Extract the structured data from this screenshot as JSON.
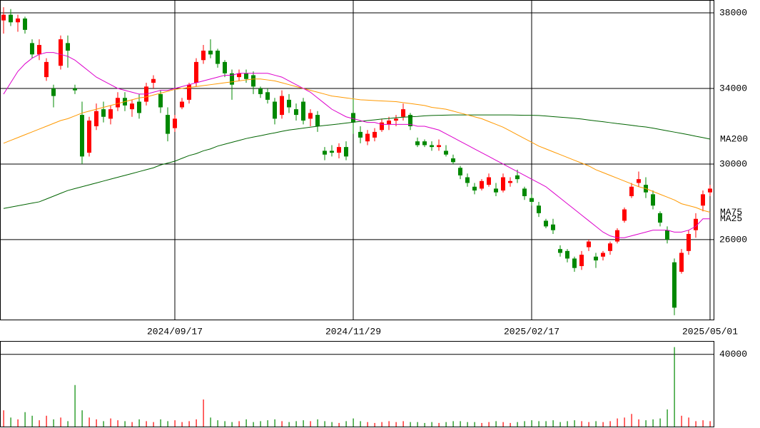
{
  "chart_data": [
    {
      "type": "candlestick",
      "categories": [
        null,
        null,
        null,
        null,
        null,
        null,
        null,
        null,
        null,
        null,
        null,
        null,
        null,
        null,
        null,
        null,
        null,
        null,
        null,
        null,
        null,
        null,
        null,
        null,
        "2024/09/17",
        null,
        null,
        null,
        null,
        null,
        null,
        null,
        null,
        null,
        null,
        null,
        null,
        null,
        null,
        null,
        null,
        null,
        null,
        null,
        null,
        null,
        null,
        null,
        null,
        "2024/11/29",
        null,
        null,
        null,
        null,
        null,
        null,
        null,
        null,
        null,
        null,
        null,
        null,
        null,
        null,
        null,
        null,
        null,
        null,
        null,
        null,
        null,
        null,
        null,
        null,
        "2025/02/17",
        null,
        null,
        null,
        null,
        null,
        null,
        null,
        null,
        null,
        null,
        null,
        null,
        null,
        null,
        null,
        null,
        null,
        null,
        null,
        null,
        null,
        null,
        null,
        null,
        "2025/05/01"
      ],
      "open": [
        37600,
        37900,
        37500,
        37700,
        36400,
        35800,
        34600,
        34000,
        35200,
        36400,
        34000,
        32600,
        30600,
        32000,
        32900,
        32400,
        33000,
        33500,
        32900,
        33300,
        33300,
        34300,
        33700,
        32600,
        31900,
        33000,
        33400,
        34300,
        35500,
        36000,
        36000,
        35400,
        34800,
        34600,
        34800,
        34700,
        34000,
        33800,
        33300,
        32600,
        33400,
        32900,
        33300,
        32400,
        32600,
        30700,
        30700,
        30600,
        30900,
        32700,
        31700,
        31200,
        31400,
        31800,
        32100,
        32300,
        32500,
        32600,
        31200,
        31200,
        31000,
        30900,
        30700,
        30300,
        29800,
        29300,
        28800,
        28700,
        28900,
        28700,
        28600,
        29000,
        29400,
        28700,
        28200,
        27800,
        27000,
        26800,
        25500,
        25400,
        25000,
        24600,
        25600,
        25100,
        25100,
        25400,
        25900,
        27000,
        28300,
        29000,
        28900,
        28400,
        27400,
        26500,
        24800,
        24300,
        25400,
        26500,
        27800,
        28500
      ],
      "high": [
        38300,
        38200,
        37900,
        37800,
        36600,
        36600,
        35600,
        34200,
        36800,
        36800,
        34200,
        33300,
        32500,
        33200,
        33300,
        33100,
        33800,
        33800,
        33400,
        33700,
        34300,
        34700,
        33900,
        33000,
        32600,
        33500,
        34300,
        35600,
        36300,
        36600,
        36100,
        35500,
        35000,
        35000,
        35000,
        34900,
        34100,
        34000,
        33500,
        33900,
        33700,
        33200,
        33500,
        32900,
        32800,
        30900,
        31000,
        31100,
        31200,
        33500,
        32000,
        31800,
        31900,
        32400,
        32500,
        32600,
        33200,
        32700,
        31400,
        31300,
        31200,
        31300,
        31000,
        30500,
        29900,
        29500,
        29000,
        29200,
        29500,
        29000,
        29500,
        29300,
        29700,
        28800,
        28400,
        28000,
        27100,
        27100,
        25700,
        25500,
        25100,
        25400,
        26000,
        25300,
        25400,
        25900,
        26600,
        27700,
        29000,
        29600,
        29300,
        28600,
        27500,
        26700,
        25000,
        25500,
        26500,
        27400,
        28600,
        28900
      ],
      "low": [
        36900,
        37300,
        37000,
        36900,
        35600,
        35500,
        34400,
        33000,
        35000,
        35100,
        33700,
        30000,
        30400,
        31800,
        32200,
        32100,
        32800,
        32800,
        32500,
        32400,
        33100,
        34000,
        32700,
        31200,
        31700,
        32900,
        33200,
        34100,
        35300,
        35600,
        35100,
        34600,
        33400,
        34400,
        34300,
        33700,
        33500,
        33200,
        32100,
        32400,
        32700,
        32300,
        32100,
        32000,
        31700,
        30200,
        30400,
        30300,
        30200,
        31600,
        31100,
        31000,
        31200,
        31700,
        31800,
        32000,
        32300,
        31800,
        30900,
        30900,
        30700,
        30700,
        30400,
        30000,
        29200,
        28800,
        28400,
        28600,
        28800,
        28300,
        28500,
        28800,
        29000,
        28100,
        27800,
        27200,
        26600,
        26300,
        25100,
        24800,
        24300,
        24400,
        25400,
        24500,
        24900,
        25200,
        25800,
        26900,
        28200,
        28800,
        28200,
        27600,
        26700,
        25800,
        22000,
        24200,
        25200,
        26100,
        27500,
        28300
      ],
      "close": [
        37900,
        37500,
        37700,
        37100,
        35800,
        36300,
        35400,
        33600,
        36600,
        36000,
        33900,
        30400,
        32300,
        32800,
        32500,
        32900,
        33500,
        33100,
        33200,
        32700,
        34100,
        34500,
        33000,
        31600,
        32400,
        33300,
        34200,
        35400,
        36000,
        35800,
        35300,
        34800,
        34200,
        34800,
        34500,
        34100,
        33700,
        33400,
        32400,
        33600,
        33000,
        32600,
        32300,
        32700,
        32000,
        30500,
        30600,
        30900,
        30400,
        32200,
        31400,
        31600,
        31700,
        32200,
        32300,
        32400,
        32900,
        32000,
        31000,
        31000,
        30900,
        31000,
        30500,
        30100,
        29400,
        29000,
        28600,
        29100,
        29300,
        28500,
        29300,
        29100,
        29200,
        28300,
        28000,
        27400,
        26700,
        26500,
        25300,
        25000,
        24500,
        25200,
        25900,
        24900,
        25300,
        25800,
        26500,
        27600,
        28800,
        29200,
        28500,
        27800,
        26900,
        26000,
        22400,
        25300,
        26300,
        27100,
        28400,
        28700
      ],
      "up_color": "#ff0000",
      "down_color": "#008800",
      "series": [
        {
          "name": "MA200",
          "color": "#006400",
          "values": [
            27650,
            27720,
            27790,
            27860,
            27930,
            28000,
            28150,
            28300,
            28450,
            28600,
            28700,
            28800,
            28900,
            29000,
            29100,
            29200,
            29300,
            29400,
            29500,
            29600,
            29700,
            29800,
            29950,
            30050,
            30150,
            30300,
            30450,
            30550,
            30700,
            30800,
            30950,
            31050,
            31150,
            31250,
            31350,
            31430,
            31500,
            31580,
            31650,
            31730,
            31800,
            31850,
            31900,
            31950,
            32000,
            32040,
            32080,
            32120,
            32170,
            32210,
            32260,
            32300,
            32340,
            32380,
            32410,
            32450,
            32480,
            32500,
            32520,
            32550,
            32570,
            32580,
            32590,
            32600,
            32600,
            32600,
            32600,
            32600,
            32600,
            32600,
            32600,
            32600,
            32590,
            32580,
            32580,
            32570,
            32540,
            32510,
            32480,
            32450,
            32420,
            32380,
            32330,
            32280,
            32240,
            32190,
            32140,
            32100,
            32050,
            32000,
            31960,
            31900,
            31830,
            31760,
            31690,
            31620,
            31550,
            31470,
            31400,
            31320
          ]
        },
        {
          "name": "MA75",
          "color": "#ff9900",
          "values": [
            31100,
            31250,
            31400,
            31550,
            31700,
            31850,
            32000,
            32150,
            32300,
            32400,
            32550,
            32700,
            32800,
            32900,
            33000,
            33100,
            33200,
            33300,
            33400,
            33500,
            33550,
            33650,
            33750,
            33850,
            33950,
            34000,
            34050,
            34100,
            34150,
            34200,
            34250,
            34300,
            34350,
            34400,
            34450,
            34500,
            34500,
            34450,
            34400,
            34300,
            34200,
            34100,
            34000,
            33900,
            33800,
            33700,
            33600,
            33550,
            33500,
            33450,
            33400,
            33380,
            33360,
            33340,
            33320,
            33300,
            33250,
            33200,
            33150,
            33100,
            33000,
            32950,
            32900,
            32800,
            32700,
            32600,
            32500,
            32400,
            32250,
            32100,
            31950,
            31750,
            31550,
            31350,
            31150,
            30950,
            30800,
            30650,
            30500,
            30350,
            30200,
            30050,
            29900,
            29700,
            29550,
            29400,
            29250,
            29100,
            28950,
            28800,
            28700,
            28550,
            28400,
            28250,
            28100,
            27900,
            27800,
            27700,
            27550,
            27450
          ]
        },
        {
          "name": "MA25",
          "color": "#dd00cc",
          "values": [
            33700,
            34300,
            34900,
            35300,
            35600,
            35800,
            35900,
            35900,
            35800,
            35700,
            35500,
            35200,
            34900,
            34600,
            34400,
            34200,
            34000,
            33900,
            33800,
            33700,
            33700,
            33800,
            33900,
            33900,
            34000,
            34100,
            34200,
            34300,
            34400,
            34500,
            34600,
            34700,
            34700,
            34800,
            34800,
            34800,
            34800,
            34800,
            34700,
            34600,
            34400,
            34200,
            34000,
            33800,
            33500,
            33200,
            32900,
            32700,
            32500,
            32400,
            32300,
            32200,
            32200,
            32100,
            32100,
            32100,
            32100,
            32100,
            32000,
            32000,
            31900,
            31800,
            31600,
            31400,
            31200,
            31000,
            30800,
            30600,
            30400,
            30200,
            30000,
            29800,
            29600,
            29400,
            29200,
            29000,
            28800,
            28500,
            28200,
            27900,
            27600,
            27300,
            27000,
            26700,
            26400,
            26200,
            26100,
            26100,
            26200,
            26300,
            26400,
            26500,
            26500,
            26500,
            26400,
            26400,
            26500,
            26700,
            27100,
            27100
          ]
        }
      ],
      "ylim": [
        21770,
        38680
      ],
      "yticks": [
        26000,
        30000,
        34000,
        38000
      ],
      "grid": true
    },
    {
      "type": "bar",
      "values": [
        9000,
        5000,
        4000,
        8000,
        6000,
        3500,
        6000,
        4000,
        5000,
        3000,
        23000,
        9000,
        5000,
        4000,
        3000,
        4500,
        3500,
        3000,
        2500,
        4000,
        3000,
        2500,
        4000,
        3000,
        3500,
        2500,
        3000,
        4000,
        15000,
        5000,
        3500,
        3000,
        2500,
        3000,
        4000,
        2500,
        3000,
        3500,
        4000,
        3000,
        2500,
        3000,
        3500,
        3000,
        4000,
        3000,
        2500,
        2000,
        3000,
        4500,
        3000,
        2500,
        2000,
        2500,
        3000,
        2500,
        3000,
        2500,
        2500,
        2000,
        2500,
        2000,
        2500,
        3000,
        3000,
        2500,
        2500,
        2000,
        2500,
        3000,
        2500,
        2000,
        2500,
        3000,
        3500,
        3000,
        3000,
        3500,
        2500,
        3000,
        3500,
        3000,
        2500,
        3000,
        2500,
        3000,
        4500,
        5000,
        7000,
        4000,
        3500,
        4000,
        4500,
        9500,
        44000,
        6000,
        5000,
        3000,
        3500,
        3000
      ],
      "ylim": [
        0,
        47000
      ],
      "yticks": [
        40000
      ],
      "grid": true
    }
  ]
}
